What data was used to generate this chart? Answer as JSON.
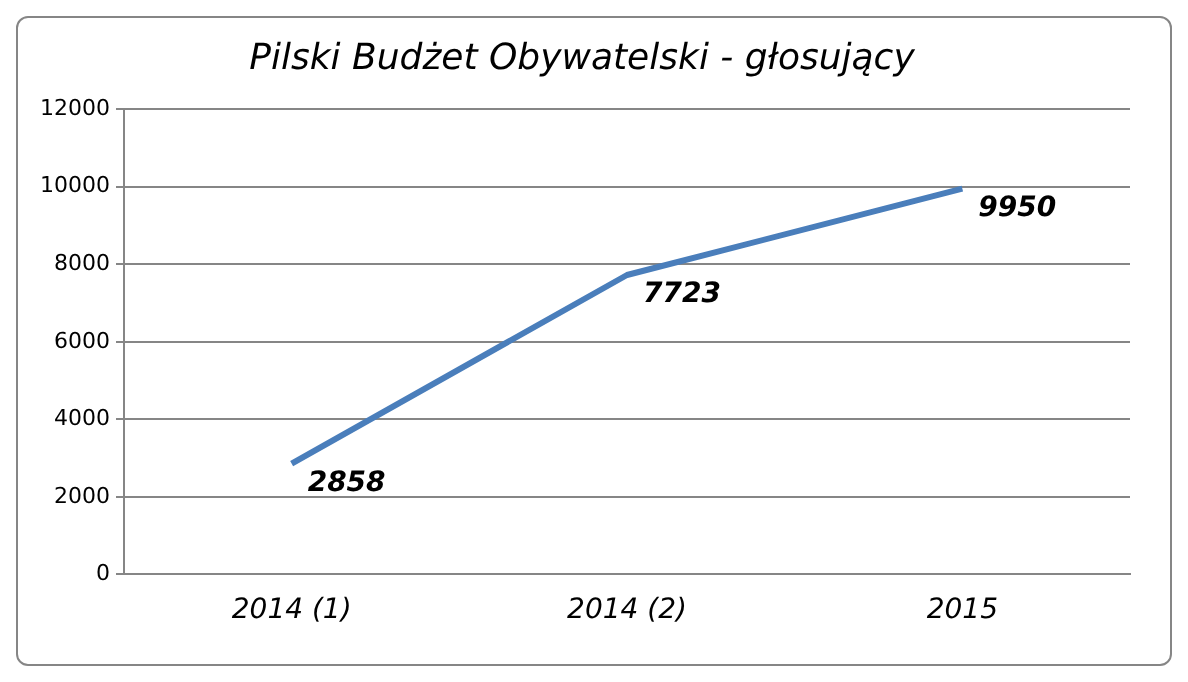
{
  "chart_data": {
    "type": "line",
    "title": "Pilski Budżet Obywatelski - głosujący",
    "categories": [
      "2014 (1)",
      "2014 (2)",
      "2015"
    ],
    "series": [
      {
        "color": "#4a7ebb",
        "values": [
          2858,
          7723,
          9950
        ]
      }
    ],
    "ylim": [
      0,
      12000
    ],
    "yticks": [
      0,
      2000,
      4000,
      6000,
      8000,
      10000,
      12000
    ],
    "grid": "y",
    "legend": false,
    "marker": "none",
    "line_style": "solid",
    "data_labels": true
  }
}
